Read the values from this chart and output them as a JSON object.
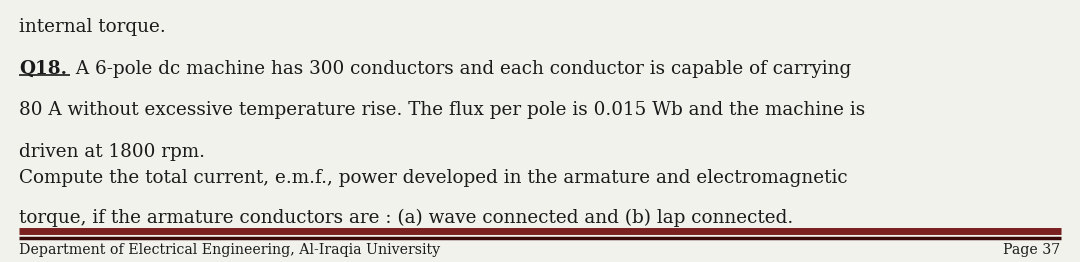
{
  "bg_color": "#f2f2ed",
  "text_color": "#1a1a1a",
  "top_text": "internal torque.",
  "q_label": "Q18.",
  "line1": " A 6-pole dc machine has 300 conductors and each conductor is capable of carrying",
  "line2": "80 A without excessive temperature rise. The flux per pole is 0.015 Wb and the machine is",
  "line3": "driven at 1800 rpm.",
  "line4": "Compute the total current, e.m.f., power developed in the armature and electromagnetic",
  "line5": "torque, if the armature conductors are : (a) wave connected and (b) lap connected.",
  "footer_left": "Department of Electrical Engineering, Al-Iraqia University",
  "footer_right": "Page 37",
  "separator_color_top": "#7a2020",
  "separator_color_bottom": "#3a0a0a",
  "font_size_main": 13.2,
  "font_size_footer": 10.2,
  "font_size_top": 13.2
}
